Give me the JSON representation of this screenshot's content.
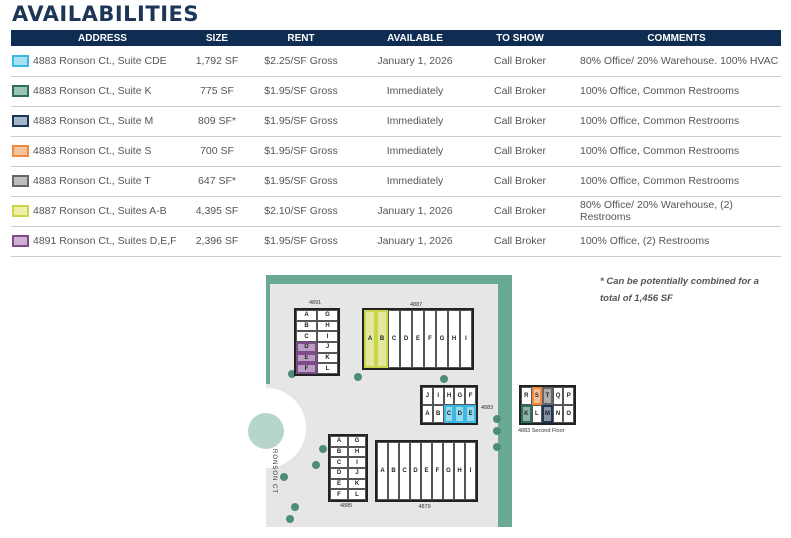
{
  "title": "AVAILABILITIES",
  "headers": [
    "ADDRESS",
    "SIZE",
    "RENT",
    "AVAILABLE",
    "TO SHOW",
    "COMMENTS"
  ],
  "rows": [
    {
      "color": "#3bb9e3",
      "fill": "#a9e0f4",
      "address": "4883 Ronson Ct., Suite CDE",
      "size": "1,792 SF",
      "rent": "$2.25/SF Gross",
      "available": "January 1, 2026",
      "to_show": "Call Broker",
      "comments": "80% Office/ 20% Warehouse. 100% HVAC"
    },
    {
      "color": "#2e6e5c",
      "fill": "#9cc4b6",
      "address": "4883 Ronson Ct., Suite K",
      "size": "775 SF",
      "rent": "$1.95/SF Gross",
      "available": "Immediately",
      "to_show": "Call Broker",
      "comments": "100% Office, Common Restrooms"
    },
    {
      "color": "#1d3557",
      "fill": "#a5b6c8",
      "address": "4883 Ronson Ct., Suite M",
      "size": "809 SF*",
      "rent": "$1.95/SF Gross",
      "available": "Immediately",
      "to_show": "Call Broker",
      "comments": "100% Office, Common Restrooms"
    },
    {
      "color": "#ef8a3c",
      "fill": "#f6c49c",
      "address": "4883 Ronson Ct., Suite S",
      "size": "700 SF",
      "rent": "$1.95/SF Gross",
      "available": "Immediately",
      "to_show": "Call Broker",
      "comments": "100% Office, Common Restrooms"
    },
    {
      "color": "#666666",
      "fill": "#bdbdbd",
      "address": "4883 Ronson Ct., Suite T",
      "size": "647 SF*",
      "rent": "$1.95/SF Gross",
      "available": "Immediately",
      "to_show": "Call Broker",
      "comments": "100% Office, Common Restrooms"
    },
    {
      "color": "#c9d64a",
      "fill": "#eef0a6",
      "address": "4887 Ronson Ct., Suites A-B",
      "size": "4,395 SF",
      "rent": "$2.10/SF Gross",
      "available": "January 1, 2026",
      "to_show": "Call Broker",
      "comments": "80% Office/ 20% Warehouse, (2) Restrooms"
    },
    {
      "color": "#7e4a8a",
      "fill": "#cdb0d3",
      "address": "4891 Ronson Ct., Suites D,E,F",
      "size": "2,396 SF",
      "rent": "$1.95/SF Gross",
      "available": "January 1, 2026",
      "to_show": "Call Broker",
      "comments": "100% Office, (2) Restrooms"
    }
  ],
  "note": [
    "* Can be potentially combined for a",
    "total of 1,456 SF"
  ],
  "plan": {
    "street": "RONSON CT",
    "buildings": [
      {
        "label": "4891",
        "cols": 2,
        "cells": [
          "A",
          "G",
          "B",
          "H",
          "C",
          "I",
          "D",
          "J",
          "E",
          "K",
          "F",
          "L"
        ],
        "highlight": {
          "D": "#7e4a8a",
          "E": "#7e4a8a",
          "F": "#7e4a8a"
        }
      },
      {
        "label": "4887",
        "cols": 9,
        "cells": [
          "A",
          "B",
          "C",
          "D",
          "E",
          "F",
          "G",
          "H",
          "I"
        ],
        "highlight": {
          "A": "#c9d64a",
          "B": "#c9d64a"
        }
      },
      {
        "label": "4883",
        "cols": 5,
        "cells": [
          "J",
          "I",
          "H",
          "G",
          "F",
          "A",
          "B",
          "C",
          "D",
          "E"
        ],
        "highlight": {
          "C": "#3bb9e3",
          "D": "#3bb9e3",
          "E": "#3bb9e3"
        }
      },
      {
        "label": "4883 Second Floor",
        "cols": 5,
        "cells": [
          "R",
          "S",
          "T",
          "Q",
          "P",
          "K",
          "L",
          "M",
          "N",
          "O"
        ],
        "highlight": {
          "S": "#ef8a3c",
          "T": "#666666",
          "K": "#2e6e5c",
          "M": "#1d3557"
        }
      },
      {
        "label": "4885",
        "cols": 2,
        "cells": [
          "A",
          "G",
          "B",
          "H",
          "C",
          "I",
          "D",
          "J",
          "E",
          "K",
          "F",
          "L"
        ],
        "highlight": {}
      },
      {
        "label": "4879",
        "cols": 9,
        "cells": [
          "A",
          "B",
          "C",
          "D",
          "E",
          "F",
          "G",
          "H",
          "I"
        ],
        "highlight": {}
      }
    ]
  }
}
